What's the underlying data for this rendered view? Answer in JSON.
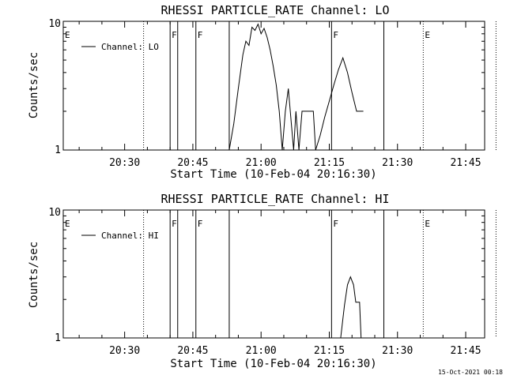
{
  "timestamp": "15-Oct-2021 00:18",
  "chart_data": [
    {
      "type": "line",
      "title": "RHESSI PARTICLE_RATE Channel: LO",
      "xlabel": "Start Time (10-Feb-04 20:16:30)",
      "ylabel": "Counts/sec",
      "ylim": [
        1,
        10
      ],
      "yscale": "log",
      "ytick_labels": [
        "1",
        "10"
      ],
      "xtick_labels": [
        "20:30",
        "20:45",
        "21:00",
        "21:15",
        "21:30",
        "21:45"
      ],
      "legend": {
        "position": "top-left",
        "label": "Channel: LO"
      },
      "flags": [
        {
          "label": "E",
          "time": "20:16:30"
        },
        {
          "label": "F",
          "time": "20:40:00"
        },
        {
          "label": "F",
          "time": "20:45:40"
        },
        {
          "label": "F",
          "time": "21:15:30"
        },
        {
          "label": "E",
          "time": "21:35:40"
        }
      ],
      "solid_lines": [
        "20:40:00",
        "20:41:40",
        "20:45:40",
        "20:53:00",
        "21:15:30",
        "21:27:00"
      ],
      "dotted_lines": [
        "20:34:10",
        "21:35:40",
        "21:51:40"
      ],
      "series": [
        {
          "points": [
            [
              "20:53:00",
              1.0
            ],
            [
              "20:54:00",
              1.6
            ],
            [
              "20:55:00",
              3.0
            ],
            [
              "20:56:00",
              5.5
            ],
            [
              "20:56:40",
              7.0
            ],
            [
              "20:57:20",
              6.5
            ],
            [
              "20:58:00",
              9.0
            ],
            [
              "20:58:40",
              8.5
            ],
            [
              "20:59:20",
              9.5
            ],
            [
              "21:00:00",
              8.0
            ],
            [
              "21:00:40",
              8.8
            ],
            [
              "21:01:20",
              7.5
            ],
            [
              "21:02:00",
              6.0
            ],
            [
              "21:02:40",
              4.5
            ],
            [
              "21:03:20",
              3.2
            ],
            [
              "21:04:00",
              2.0
            ],
            [
              "21:04:40",
              1.0
            ],
            [
              "21:05:20",
              2.0
            ],
            [
              "21:06:00",
              3.0
            ],
            [
              "21:06:40",
              1.6
            ],
            [
              "21:07:10",
              1.0
            ],
            [
              "21:07:40",
              2.0
            ],
            [
              "21:08:20",
              1.0
            ],
            [
              "21:09:00",
              2.0
            ],
            [
              "21:11:30",
              2.0
            ],
            [
              "21:12:00",
              1.0
            ],
            [
              "21:13:00",
              1.3
            ],
            [
              "21:14:00",
              1.8
            ],
            [
              "21:15:00",
              2.4
            ],
            [
              "21:16:00",
              3.2
            ],
            [
              "21:17:00",
              4.2
            ],
            [
              "21:18:00",
              5.2
            ],
            [
              "21:19:00",
              4.0
            ],
            [
              "21:20:00",
              2.8
            ],
            [
              "21:21:00",
              2.0
            ],
            [
              "21:22:30",
              2.0
            ]
          ]
        }
      ]
    },
    {
      "type": "line",
      "title": "RHESSI PARTICLE_RATE Channel: HI",
      "xlabel": "Start Time (10-Feb-04 20:16:30)",
      "ylabel": "Counts/sec",
      "ylim": [
        1,
        10
      ],
      "yscale": "log",
      "ytick_labels": [
        "1",
        "10"
      ],
      "xtick_labels": [
        "20:30",
        "20:45",
        "21:00",
        "21:15",
        "21:30",
        "21:45"
      ],
      "legend": {
        "position": "top-left",
        "label": "Channel: HI"
      },
      "flags": [
        {
          "label": "E",
          "time": "20:16:30"
        },
        {
          "label": "F",
          "time": "20:40:00"
        },
        {
          "label": "F",
          "time": "20:45:40"
        },
        {
          "label": "F",
          "time": "21:15:30"
        },
        {
          "label": "E",
          "time": "21:35:40"
        }
      ],
      "solid_lines": [
        "20:40:00",
        "20:41:40",
        "20:45:40",
        "20:53:00",
        "21:15:30",
        "21:27:00"
      ],
      "dotted_lines": [
        "20:34:10",
        "21:35:40",
        "21:51:40"
      ],
      "series": [
        {
          "points": [
            [
              "21:17:30",
              1.0
            ],
            [
              "21:18:20",
              1.8
            ],
            [
              "21:19:00",
              2.6
            ],
            [
              "21:19:40",
              3.0
            ],
            [
              "21:20:20",
              2.6
            ],
            [
              "21:20:50",
              1.9
            ],
            [
              "21:21:40",
              1.9
            ],
            [
              "21:22:00",
              1.0
            ]
          ]
        }
      ]
    }
  ]
}
